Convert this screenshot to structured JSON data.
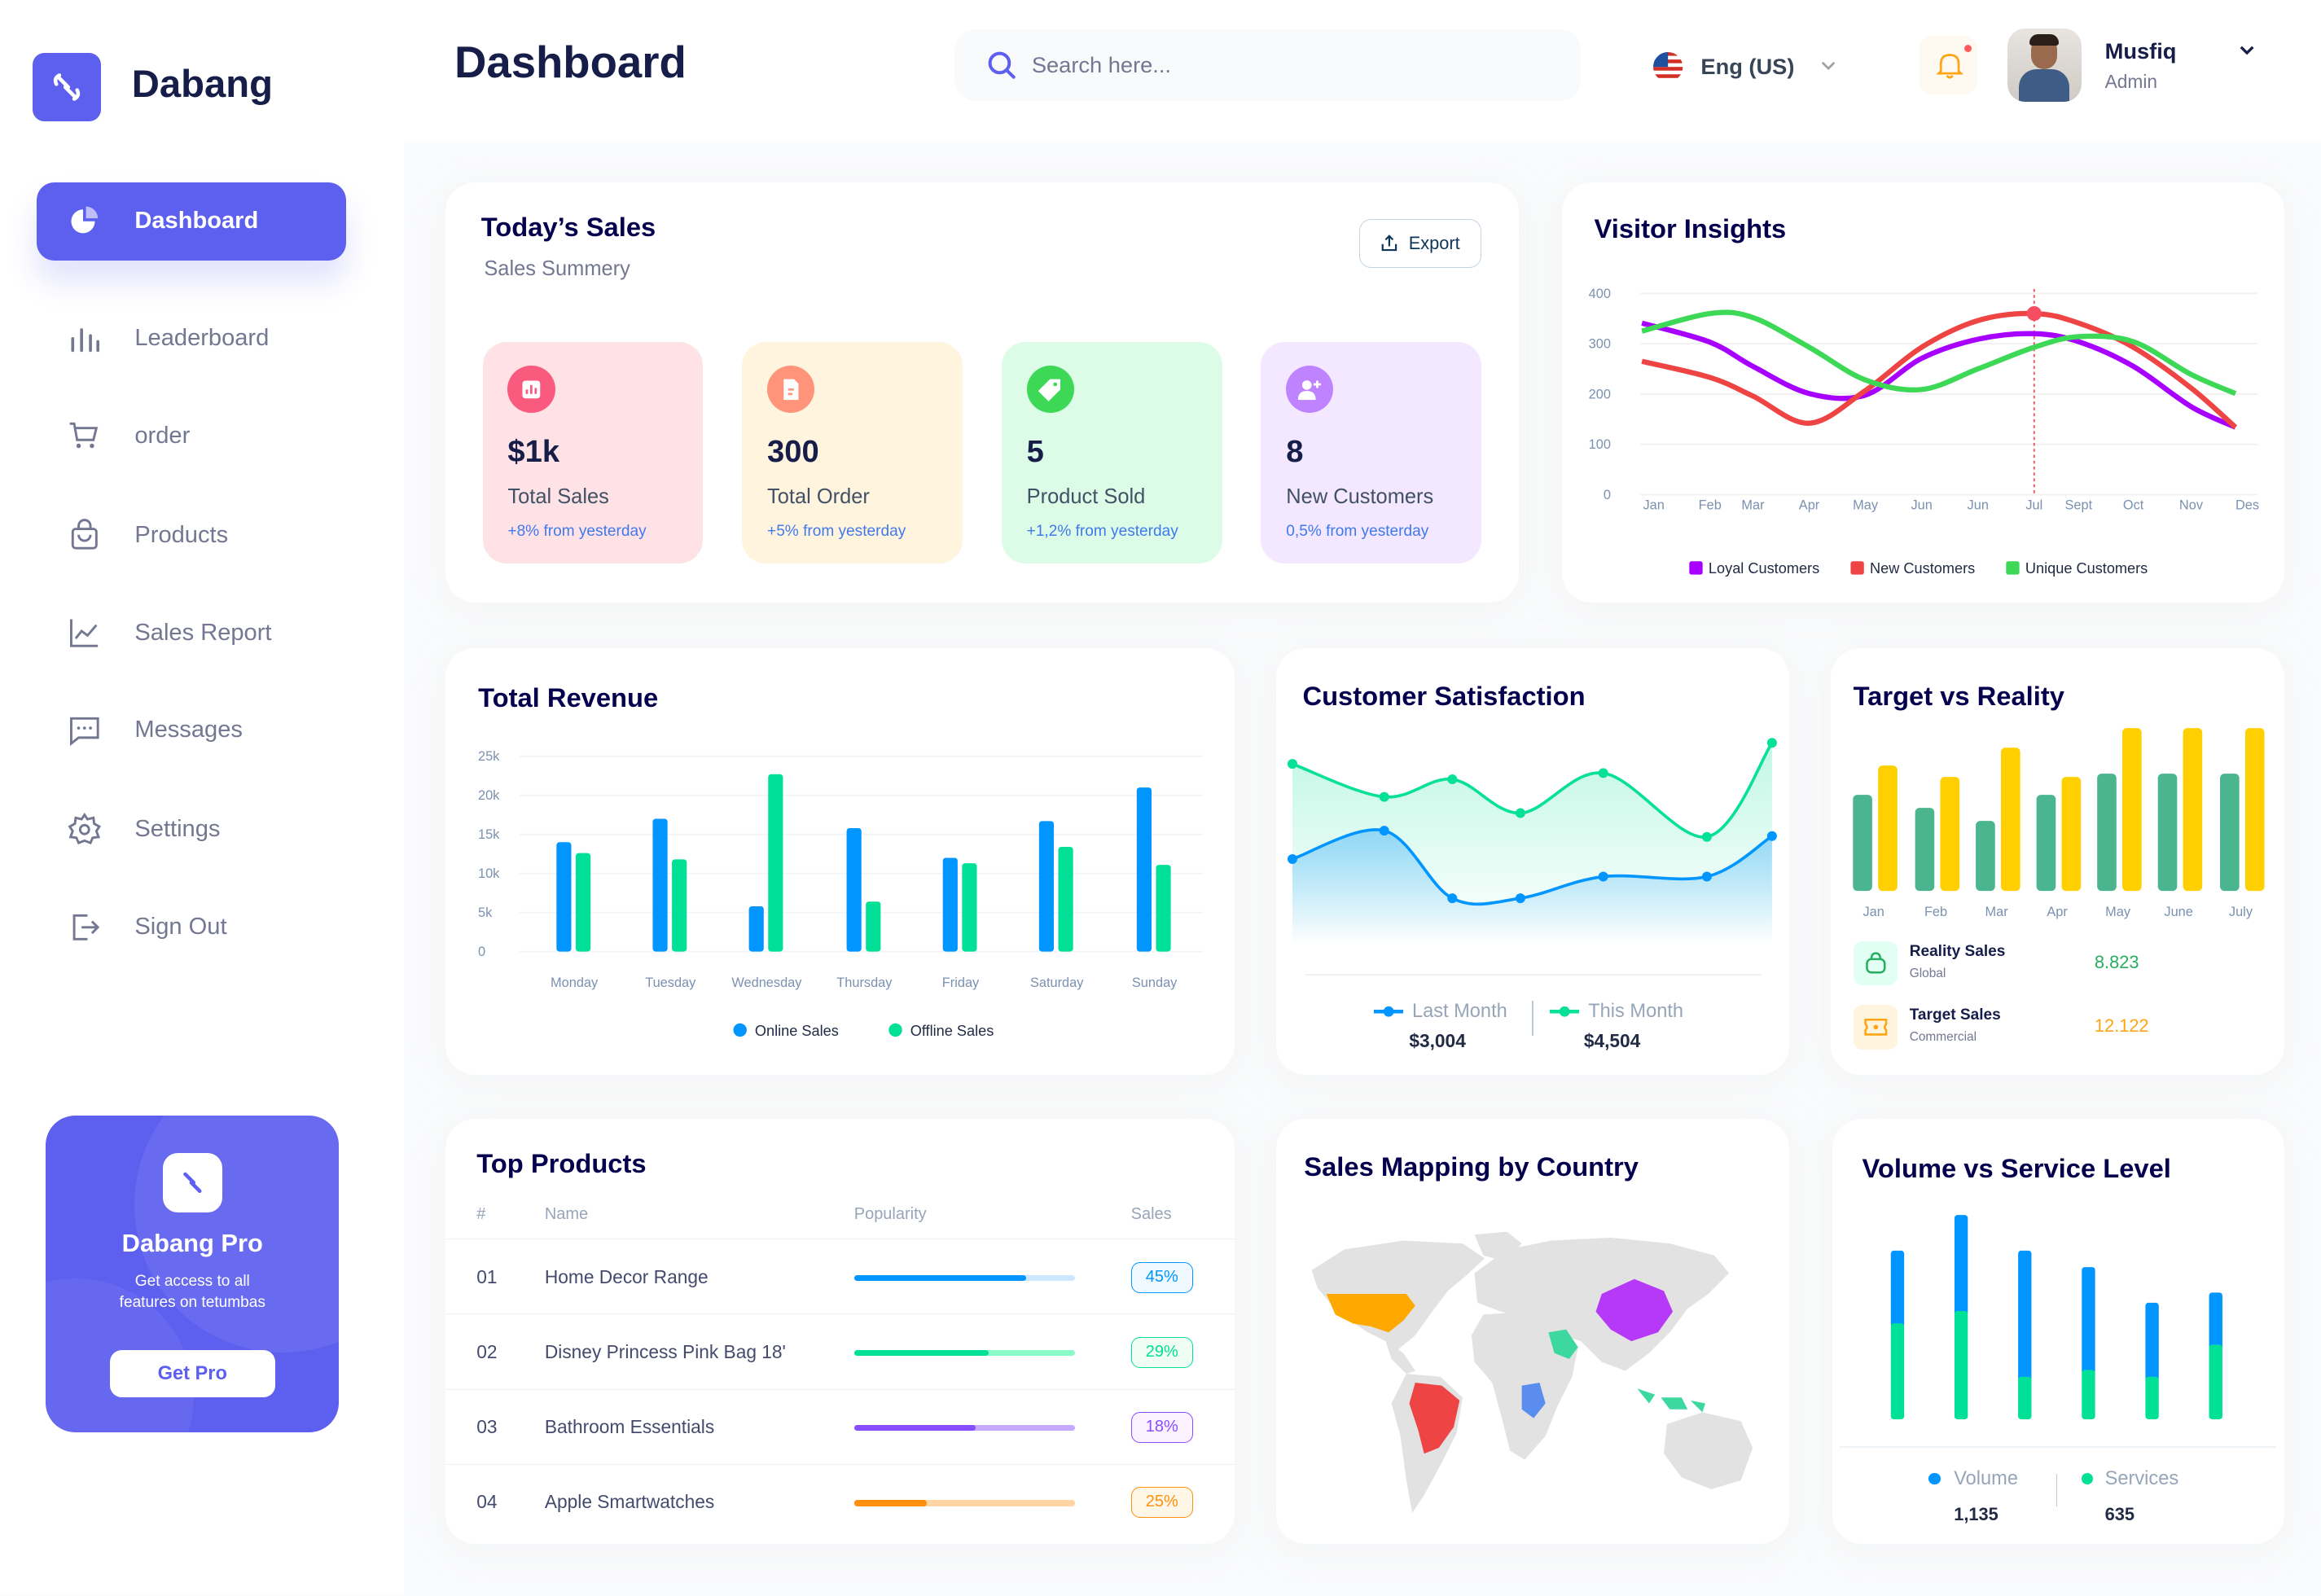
{
  "brand": {
    "name": "Dabang",
    "accent": "#5D5FEF"
  },
  "header": {
    "title": "Dashboard",
    "search_placeholder": "Search here...",
    "language": "Eng (US)",
    "user": {
      "name": "Musfiq",
      "role": "Admin"
    }
  },
  "sidebar": {
    "items": [
      {
        "label": "Dashboard",
        "icon": "pie-chart-icon",
        "active": true
      },
      {
        "label": "Leaderboard",
        "icon": "bar-chart-icon"
      },
      {
        "label": "order",
        "icon": "cart-icon"
      },
      {
        "label": "Products",
        "icon": "bag-icon"
      },
      {
        "label": "Sales Report",
        "icon": "line-chart-icon"
      },
      {
        "label": "Messages",
        "icon": "message-icon"
      },
      {
        "label": "Settings",
        "icon": "gear-icon"
      },
      {
        "label": "Sign Out",
        "icon": "sign-out-icon"
      }
    ],
    "promo": {
      "title": "Dabang Pro",
      "text_1": "Get access to all",
      "text_2": "features on tetumbas",
      "button": "Get Pro"
    }
  },
  "todays_sales": {
    "title": "Today’s Sales",
    "subtitle": "Sales Summery",
    "export": "Export",
    "stats": [
      {
        "value": "$1k",
        "label": "Total Sales",
        "delta": "+8% from yesterday",
        "bg": "#FFE2E5",
        "icon_color": "#FA5A7D",
        "icon": "chart-icon"
      },
      {
        "value": "300",
        "label": "Total Order",
        "delta": "+5% from yesterday",
        "bg": "#FFF4DE",
        "icon_color": "#FF947A",
        "icon": "document-icon"
      },
      {
        "value": "5",
        "label": "Product Sold",
        "delta": "+1,2% from yesterday",
        "bg": "#DCFCE7",
        "icon_color": "#3CD856",
        "icon": "tag-icon"
      },
      {
        "value": "8",
        "label": "New Customers",
        "delta": "0,5% from yesterday",
        "bg": "#F3E8FF",
        "icon_color": "#BF83FF",
        "icon": "add-user-icon"
      }
    ]
  },
  "visitor_insights": {
    "title": "Visitor Insights"
  },
  "total_revenue": {
    "title": "Total Revenue"
  },
  "customer_satisfaction": {
    "title": "Customer Satisfaction",
    "last_month_label": "Last Month",
    "last_month_value": "$3,004",
    "this_month_label": "This Month",
    "this_month_value": "$4,504"
  },
  "target_vs_reality": {
    "title": "Target vs Reality",
    "rows": [
      {
        "label": "Reality Sales",
        "sub": "Global",
        "value": "8.823",
        "color": "#27AE60",
        "bg": "#E2FFF3",
        "icon": "shopping-bag-icon"
      },
      {
        "label": "Target Sales",
        "sub": "Commercial",
        "value": "12.122",
        "color": "#FFA412",
        "bg": "#FFF4DE",
        "icon": "ticket-icon"
      }
    ]
  },
  "top_products": {
    "title": "Top Products",
    "columns": [
      "#",
      "Name",
      "Popularity",
      "Sales"
    ],
    "rows": [
      {
        "num": "01",
        "name": "Home Decor Range",
        "popularity": 0.78,
        "sales": "45%",
        "color": "#0095FF",
        "track": "#CDE7FF",
        "badge_bg": "#F0F9FF"
      },
      {
        "num": "02",
        "name": "Disney Princess Pink Bag 18'",
        "popularity": 0.61,
        "sales": "29%",
        "color": "#00E096",
        "track": "#8CFAC7",
        "badge_bg": "#F0FDF4"
      },
      {
        "num": "03",
        "name": "Bathroom Essentials",
        "popularity": 0.55,
        "sales": "18%",
        "color": "#884DFF",
        "track": "#C5A8FF",
        "badge_bg": "#FBF1FF"
      },
      {
        "num": "04",
        "name": "Apple Smartwatches",
        "popularity": 0.33,
        "sales": "25%",
        "color": "#FF8F0D",
        "track": "#FFD5A4",
        "badge_bg": "#FEF6E6"
      }
    ]
  },
  "sales_mapping": {
    "title": "Sales Mapping by Country"
  },
  "volume_service": {
    "title": "Volume vs Service Level",
    "volume_label": "Volume",
    "volume_value": "1,135",
    "services_label": "Services",
    "services_value": "635"
  },
  "chart_data": [
    {
      "type": "line",
      "id": "visitor_insights",
      "x": [
        "Jan",
        "Feb",
        "Mar",
        "Apr",
        "May",
        "Jun",
        "Jun",
        "Jul",
        "Sept",
        "Oct",
        "Nov",
        "Des"
      ],
      "ylim": [
        0,
        400
      ],
      "yticks": [
        0,
        100,
        200,
        300,
        400
      ],
      "grid": true,
      "legend": "bottom",
      "series": [
        {
          "name": "Loyal Customers",
          "color": "#A700FF",
          "values": [
            341,
            303,
            255,
            201,
            198,
            271,
            309,
            320,
            304,
            255,
            175,
            134
          ]
        },
        {
          "name": "New Customers",
          "color": "#EF4444",
          "values": [
            265,
            233,
            196,
            142,
            207,
            293,
            346,
            360,
            341,
            293,
            212,
            134
          ]
        },
        {
          "name": "Unique Customers",
          "color": "#3CD856",
          "values": [
            325,
            360,
            352,
            293,
            228,
            209,
            250,
            293,
            314,
            304,
            239,
            201
          ]
        }
      ],
      "highlight": {
        "series": "New Customers",
        "x": "Jul"
      }
    },
    {
      "type": "bar",
      "id": "total_revenue",
      "categories": [
        "Monday",
        "Tuesday",
        "Wednesday",
        "Thursday",
        "Friday",
        "Saturday",
        "Sunday"
      ],
      "ylim": [
        0,
        25000
      ],
      "yticks": [
        "0",
        "5k",
        "10k",
        "15k",
        "20k",
        "25k"
      ],
      "grid": true,
      "legend": "bottom",
      "series": [
        {
          "name": "Online Sales",
          "color": "#0095FF",
          "values": [
            14000,
            17000,
            5800,
            15800,
            12000,
            16700,
            21000
          ]
        },
        {
          "name": "Offline Sales",
          "color": "#00E096",
          "values": [
            12600,
            11800,
            22700,
            6400,
            11300,
            13400,
            11100
          ]
        }
      ]
    },
    {
      "type": "area",
      "id": "customer_satisfaction",
      "series": [
        {
          "name": "Last Month",
          "color": "#0095FF",
          "values": [
            280,
            385,
            135,
            135,
            215,
            215,
            365
          ]
        },
        {
          "name": "This Month",
          "color": "#07E098",
          "values": [
            632,
            510,
            575,
            450,
            598,
            362,
            710
          ]
        }
      ]
    },
    {
      "type": "bar",
      "id": "target_vs_reality",
      "categories": [
        "Jan",
        "Feb",
        "Mar",
        "Apr",
        "May",
        "June",
        "July"
      ],
      "series": [
        {
          "name": "Reality Sales",
          "color": "#4AB58E",
          "values": [
            5.9,
            5.1,
            4.3,
            5.9,
            7.2,
            7.2,
            7.2
          ]
        },
        {
          "name": "Target Sales",
          "color": "#FFCF00",
          "values": [
            7.7,
            7.0,
            8.8,
            7.0,
            10,
            10,
            10
          ]
        }
      ]
    },
    {
      "type": "bar",
      "id": "volume_service",
      "stacked": true,
      "series": [
        {
          "name": "Services",
          "color": "#00E096",
          "values": [
            350,
            395,
            155,
            180,
            155,
            272
          ]
        },
        {
          "name": "Volume",
          "color": "#0095FF",
          "values": [
            265,
            350,
            460,
            375,
            270,
            190
          ]
        }
      ]
    }
  ]
}
